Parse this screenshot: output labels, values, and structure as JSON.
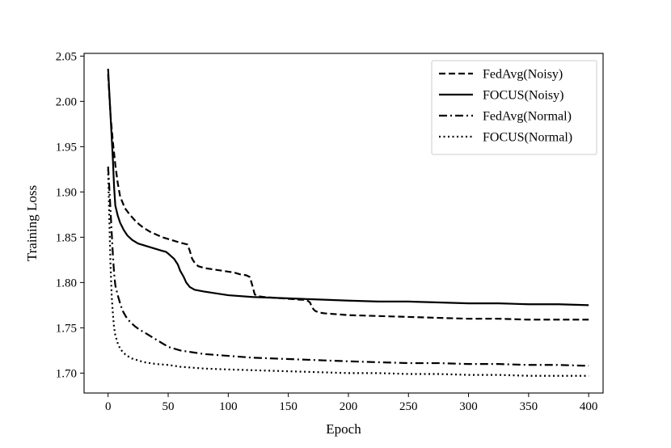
{
  "chart_data": {
    "type": "line",
    "title": "",
    "xlabel": "Epoch",
    "ylabel": "Training Loss",
    "xlim": [
      -20,
      412
    ],
    "ylim": [
      1.678,
      2.053
    ],
    "xticks": [
      0,
      50,
      100,
      150,
      200,
      250,
      300,
      350,
      400
    ],
    "yticks": [
      1.7,
      1.75,
      1.8,
      1.85,
      1.9,
      1.95,
      2.0,
      2.05
    ],
    "ytick_labels": [
      "1.70",
      "1.75",
      "1.80",
      "1.85",
      "1.90",
      "1.95",
      "2.00",
      "2.05"
    ],
    "grid": false,
    "legend_position": "top-right",
    "line_color": "#000000",
    "series": [
      {
        "name": "FedAvg(Noisy)",
        "style": "dashed",
        "points": [
          [
            0,
            2.03
          ],
          [
            2,
            1.985
          ],
          [
            4,
            1.955
          ],
          [
            6,
            1.93
          ],
          [
            8,
            1.91
          ],
          [
            10,
            1.895
          ],
          [
            14,
            1.882
          ],
          [
            18,
            1.875
          ],
          [
            22,
            1.869
          ],
          [
            26,
            1.864
          ],
          [
            30,
            1.86
          ],
          [
            35,
            1.856
          ],
          [
            40,
            1.853
          ],
          [
            45,
            1.85
          ],
          [
            50,
            1.848
          ],
          [
            55,
            1.846
          ],
          [
            60,
            1.844
          ],
          [
            66,
            1.842
          ],
          [
            68,
            1.835
          ],
          [
            70,
            1.826
          ],
          [
            72,
            1.822
          ],
          [
            75,
            1.818
          ],
          [
            80,
            1.816
          ],
          [
            85,
            1.815
          ],
          [
            90,
            1.814
          ],
          [
            95,
            1.813
          ],
          [
            100,
            1.812
          ],
          [
            105,
            1.811
          ],
          [
            110,
            1.809
          ],
          [
            115,
            1.808
          ],
          [
            118,
            1.806
          ],
          [
            120,
            1.797
          ],
          [
            122,
            1.787
          ],
          [
            124,
            1.785
          ],
          [
            130,
            1.784
          ],
          [
            140,
            1.783
          ],
          [
            150,
            1.782
          ],
          [
            160,
            1.781
          ],
          [
            165,
            1.781
          ],
          [
            168,
            1.778
          ],
          [
            170,
            1.772
          ],
          [
            172,
            1.769
          ],
          [
            175,
            1.767
          ],
          [
            180,
            1.766
          ],
          [
            190,
            1.765
          ],
          [
            200,
            1.764
          ],
          [
            225,
            1.763
          ],
          [
            250,
            1.762
          ],
          [
            275,
            1.761
          ],
          [
            300,
            1.76
          ],
          [
            325,
            1.76
          ],
          [
            350,
            1.759
          ],
          [
            375,
            1.759
          ],
          [
            400,
            1.759
          ]
        ]
      },
      {
        "name": "FOCUS(Noisy)",
        "style": "solid",
        "points": [
          [
            0,
            2.036
          ],
          [
            1,
            2.01
          ],
          [
            2,
            1.985
          ],
          [
            3,
            1.96
          ],
          [
            4,
            1.935
          ],
          [
            5,
            1.905
          ],
          [
            6,
            1.885
          ],
          [
            8,
            1.874
          ],
          [
            10,
            1.866
          ],
          [
            13,
            1.858
          ],
          [
            16,
            1.852
          ],
          [
            20,
            1.847
          ],
          [
            25,
            1.843
          ],
          [
            30,
            1.841
          ],
          [
            35,
            1.839
          ],
          [
            40,
            1.837
          ],
          [
            45,
            1.835
          ],
          [
            48,
            1.834
          ],
          [
            50,
            1.832
          ],
          [
            55,
            1.826
          ],
          [
            58,
            1.82
          ],
          [
            60,
            1.813
          ],
          [
            63,
            1.806
          ],
          [
            65,
            1.8
          ],
          [
            68,
            1.795
          ],
          [
            72,
            1.792
          ],
          [
            80,
            1.79
          ],
          [
            90,
            1.788
          ],
          [
            100,
            1.786
          ],
          [
            120,
            1.784
          ],
          [
            140,
            1.783
          ],
          [
            160,
            1.782
          ],
          [
            180,
            1.781
          ],
          [
            200,
            1.78
          ],
          [
            225,
            1.779
          ],
          [
            250,
            1.779
          ],
          [
            275,
            1.778
          ],
          [
            300,
            1.777
          ],
          [
            325,
            1.777
          ],
          [
            350,
            1.776
          ],
          [
            375,
            1.776
          ],
          [
            400,
            1.775
          ]
        ]
      },
      {
        "name": "FedAvg(Normal)",
        "style": "dashdot",
        "points": [
          [
            0,
            1.928
          ],
          [
            1,
            1.905
          ],
          [
            2,
            1.88
          ],
          [
            3,
            1.855
          ],
          [
            4,
            1.83
          ],
          [
            5,
            1.81
          ],
          [
            6,
            1.797
          ],
          [
            8,
            1.786
          ],
          [
            10,
            1.777
          ],
          [
            12,
            1.769
          ],
          [
            15,
            1.762
          ],
          [
            18,
            1.757
          ],
          [
            22,
            1.752
          ],
          [
            26,
            1.748
          ],
          [
            30,
            1.745
          ],
          [
            35,
            1.741
          ],
          [
            40,
            1.737
          ],
          [
            45,
            1.733
          ],
          [
            50,
            1.729
          ],
          [
            55,
            1.727
          ],
          [
            60,
            1.725
          ],
          [
            70,
            1.723
          ],
          [
            80,
            1.721
          ],
          [
            90,
            1.72
          ],
          [
            100,
            1.719
          ],
          [
            120,
            1.717
          ],
          [
            140,
            1.716
          ],
          [
            160,
            1.715
          ],
          [
            180,
            1.714
          ],
          [
            200,
            1.713
          ],
          [
            225,
            1.712
          ],
          [
            250,
            1.711
          ],
          [
            275,
            1.711
          ],
          [
            300,
            1.71
          ],
          [
            325,
            1.71
          ],
          [
            350,
            1.709
          ],
          [
            375,
            1.709
          ],
          [
            400,
            1.708
          ]
        ]
      },
      {
        "name": "FOCUS(Normal)",
        "style": "dotted",
        "points": [
          [
            0,
            1.925
          ],
          [
            1,
            1.87
          ],
          [
            2,
            1.82
          ],
          [
            3,
            1.785
          ],
          [
            4,
            1.765
          ],
          [
            5,
            1.75
          ],
          [
            6,
            1.742
          ],
          [
            8,
            1.733
          ],
          [
            10,
            1.727
          ],
          [
            13,
            1.722
          ],
          [
            16,
            1.719
          ],
          [
            20,
            1.716
          ],
          [
            25,
            1.714
          ],
          [
            30,
            1.712
          ],
          [
            40,
            1.71
          ],
          [
            50,
            1.709
          ],
          [
            60,
            1.707
          ],
          [
            70,
            1.706
          ],
          [
            80,
            1.705
          ],
          [
            100,
            1.704
          ],
          [
            125,
            1.703
          ],
          [
            150,
            1.702
          ],
          [
            175,
            1.701
          ],
          [
            200,
            1.7
          ],
          [
            225,
            1.7
          ],
          [
            250,
            1.699
          ],
          [
            275,
            1.699
          ],
          [
            300,
            1.698
          ],
          [
            325,
            1.698
          ],
          [
            350,
            1.697
          ],
          [
            375,
            1.697
          ],
          [
            400,
            1.697
          ]
        ]
      }
    ]
  }
}
